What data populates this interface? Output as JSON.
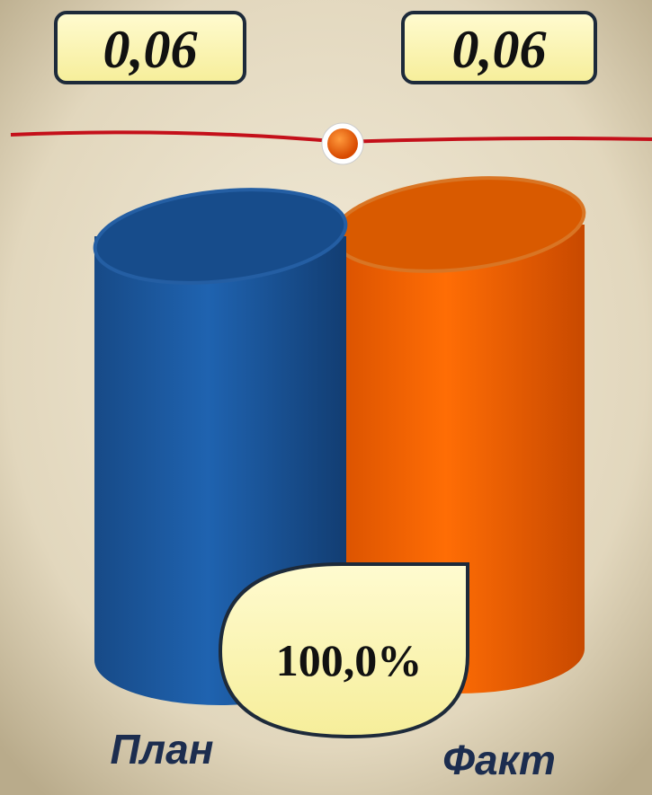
{
  "chart_data": {
    "type": "bar",
    "categories": [
      "План",
      "Факт"
    ],
    "series": [
      {
        "values": [
          0.06,
          0.06
        ],
        "value_labels": [
          "0,06",
          "0,06"
        ],
        "colors": [
          "#1b5aa3",
          "#ff6a00"
        ]
      }
    ],
    "annotation": "100,0%"
  }
}
